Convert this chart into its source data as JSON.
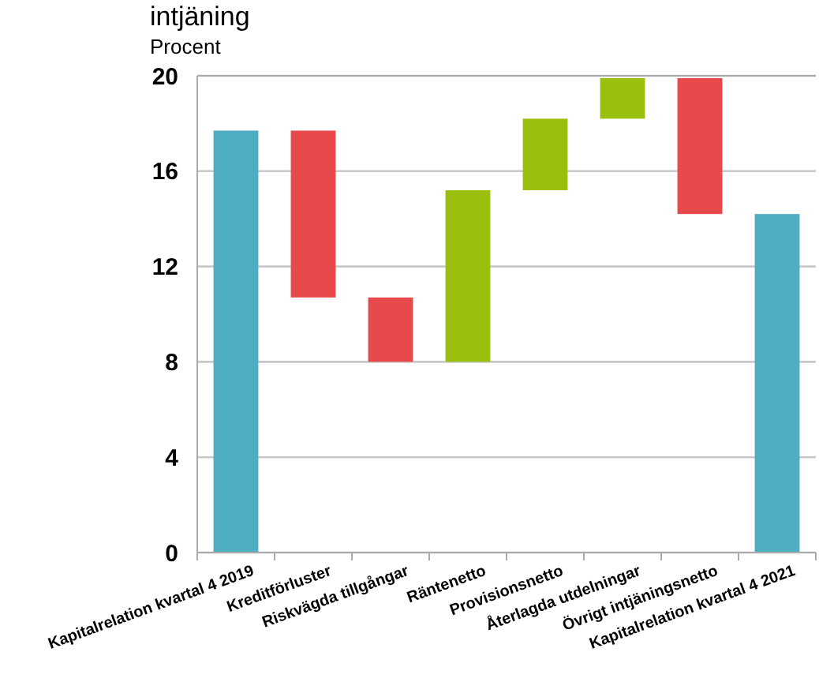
{
  "chart_data": {
    "type": "bar",
    "title": "intjäning",
    "ylabel": "Procent",
    "categories": [
      "Kapitalrelation kvartal 4 2019",
      "Kreditförluster",
      "Riskvägda tillgångar",
      "Räntenetto",
      "Provisionsnetto",
      "Återlagda utdelningar",
      "Övrigt intjäningsnetto",
      "Kapitalrelation kvartal 4 2021"
    ],
    "values": [
      17.7,
      -7.0,
      -2.7,
      7.2,
      3.0,
      1.7,
      -5.7,
      14.2
    ],
    "base": [
      0,
      17.7,
      10.7,
      8.0,
      15.2,
      18.2,
      19.9,
      0
    ],
    "colors": [
      "#4fadc2",
      "#e8494a",
      "#e8494a",
      "#9bbf0d",
      "#9bbf0d",
      "#9bbf0d",
      "#e8494a",
      "#4fadc2"
    ],
    "ylim": [
      0,
      20
    ],
    "yticks": [
      0,
      4,
      8,
      12,
      16,
      20
    ],
    "grid": "y"
  }
}
